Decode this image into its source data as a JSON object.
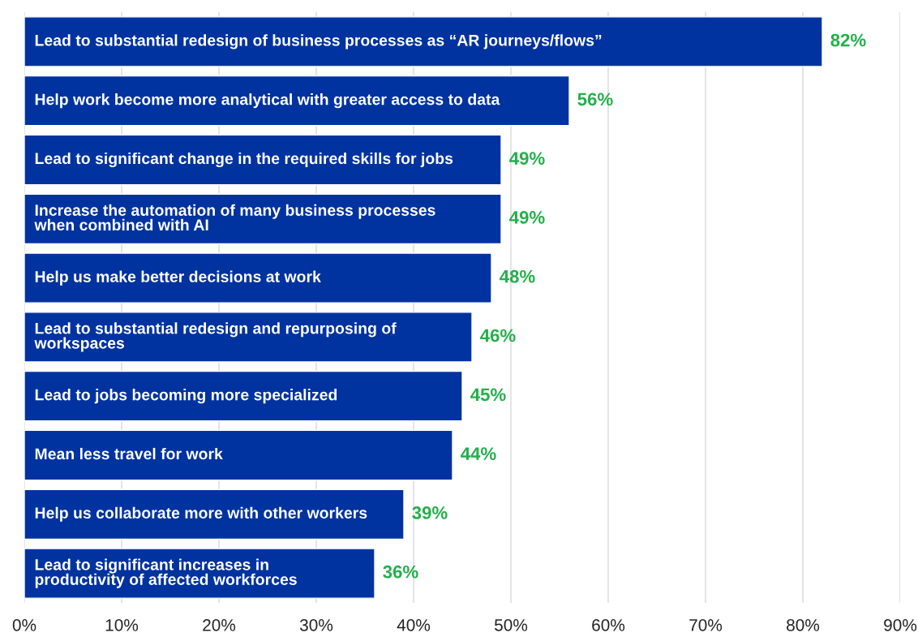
{
  "chart_data": {
    "type": "bar",
    "orientation": "horizontal",
    "categories": [
      "Lead to substantial redesign of business processes as “AR journeys/flows”",
      "Help work become more analytical with greater access to data",
      "Lead to significant change in the required skills for jobs",
      "Increase the automation of many business processes\nwhen combined with AI",
      "Help us make better decisions at work",
      "Lead to substantial redesign and repurposing of\nworkspaces",
      "Lead to jobs becoming more specialized",
      "Mean less travel for work",
      "Help us collaborate more with other workers",
      "Lead to significant increases in\nproductivity of affected workforces"
    ],
    "values": [
      82,
      56,
      49,
      49,
      48,
      46,
      45,
      44,
      39,
      36
    ],
    "value_labels": [
      "82%",
      "56%",
      "49%",
      "49%",
      "48%",
      "46%",
      "45%",
      "44%",
      "39%",
      "36%"
    ],
    "color": "#0033a0",
    "xlim": [
      0,
      90
    ],
    "xticks": [
      {
        "value": 0,
        "label": "0%"
      },
      {
        "value": 10,
        "label": "10%"
      },
      {
        "value": 20,
        "label": "20%"
      },
      {
        "value": 30,
        "label": "30%"
      },
      {
        "value": 40,
        "label": "40%"
      },
      {
        "value": 50,
        "label": "50%"
      },
      {
        "value": 60,
        "label": "60%"
      },
      {
        "value": 70,
        "label": "70%"
      },
      {
        "value": 80,
        "label": "80%"
      },
      {
        "value": 90,
        "label": "90%"
      }
    ],
    "grid": "x",
    "legend": false
  }
}
